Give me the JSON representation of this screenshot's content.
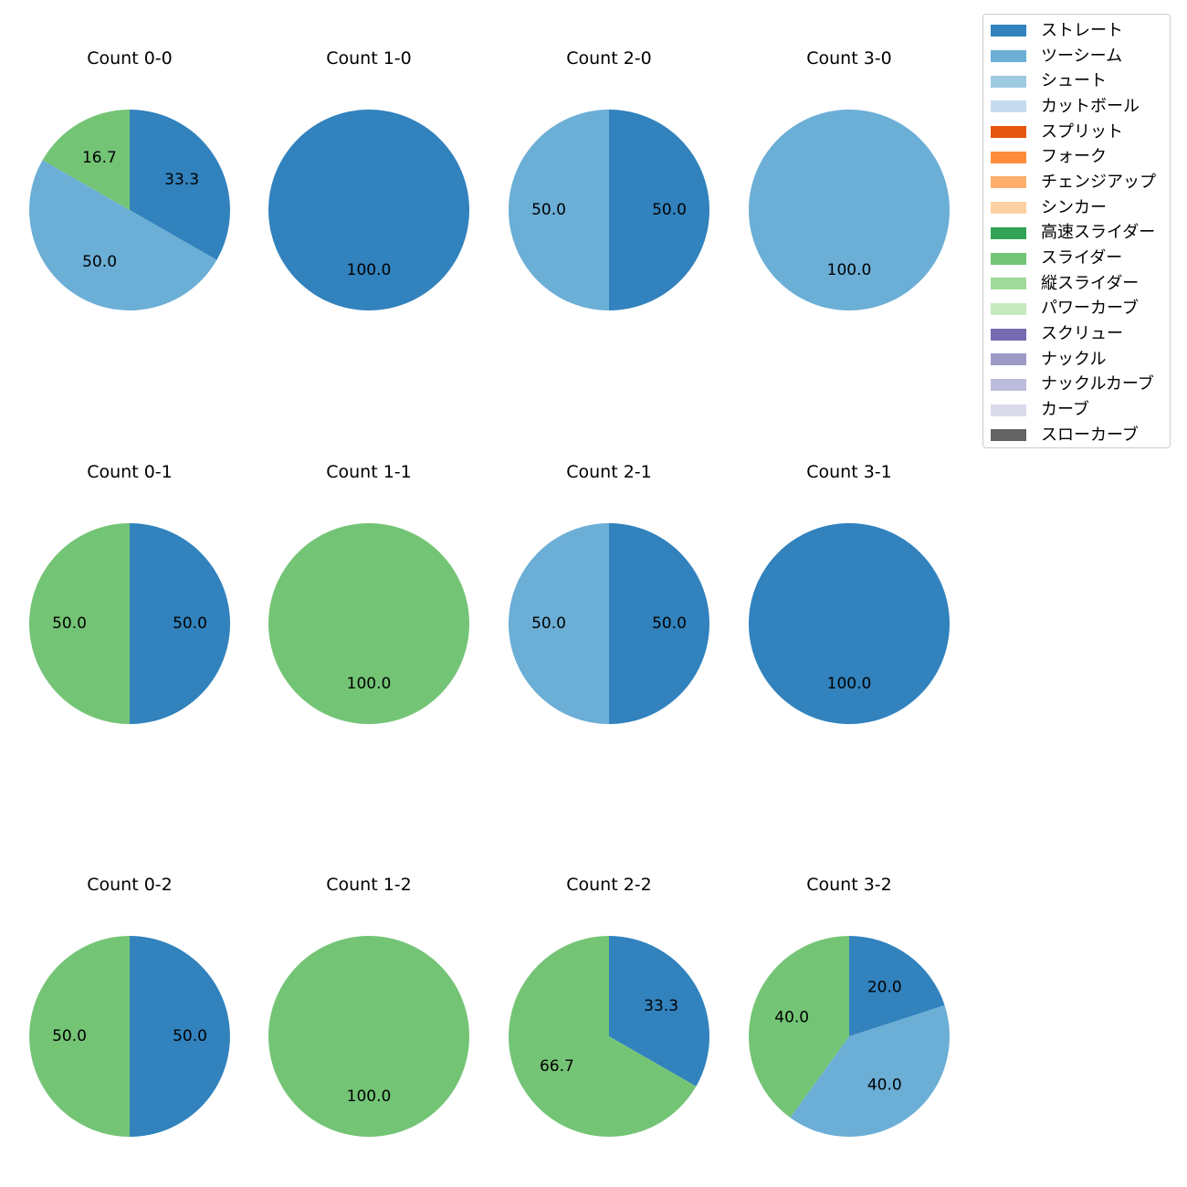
{
  "chart_data": {
    "type": "pie",
    "grid": false,
    "legend_position": "right",
    "legend": [
      {
        "label": "ストレート",
        "color": "#3182bd"
      },
      {
        "label": "ツーシーム",
        "color": "#6baed6"
      },
      {
        "label": "シュート",
        "color": "#9ecae1"
      },
      {
        "label": "カットボール",
        "color": "#c6dbef"
      },
      {
        "label": "スプリット",
        "color": "#e6550d"
      },
      {
        "label": "フォーク",
        "color": "#fd8d3c"
      },
      {
        "label": "チェンジアップ",
        "color": "#fdae6b"
      },
      {
        "label": "シンカー",
        "color": "#fdd0a2"
      },
      {
        "label": "高速スライダー",
        "color": "#31a354"
      },
      {
        "label": "スライダー",
        "color": "#74c476"
      },
      {
        "label": "縦スライダー",
        "color": "#a1d99b"
      },
      {
        "label": "パワーカーブ",
        "color": "#c7e9c0"
      },
      {
        "label": "スクリュー",
        "color": "#756bb1"
      },
      {
        "label": "ナックル",
        "color": "#9e9ac8"
      },
      {
        "label": "ナックルカーブ",
        "color": "#bcbddc"
      },
      {
        "label": "カーブ",
        "color": "#dadaeb"
      },
      {
        "label": "スローカーブ",
        "color": "#636363"
      }
    ],
    "pies": [
      {
        "title": "Count 0-0",
        "slices": [
          {
            "pitch": "ストレート",
            "value": 33.3
          },
          {
            "pitch": "ツーシーム",
            "value": 50.0
          },
          {
            "pitch": "スライダー",
            "value": 16.7
          }
        ]
      },
      {
        "title": "Count 1-0",
        "slices": [
          {
            "pitch": "ストレート",
            "value": 100.0
          }
        ]
      },
      {
        "title": "Count 2-0",
        "slices": [
          {
            "pitch": "ストレート",
            "value": 50.0
          },
          {
            "pitch": "ツーシーム",
            "value": 50.0
          }
        ]
      },
      {
        "title": "Count 3-0",
        "slices": [
          {
            "pitch": "ツーシーム",
            "value": 100.0
          }
        ]
      },
      {
        "title": "Count 0-1",
        "slices": [
          {
            "pitch": "ストレート",
            "value": 50.0
          },
          {
            "pitch": "スライダー",
            "value": 50.0
          }
        ]
      },
      {
        "title": "Count 1-1",
        "slices": [
          {
            "pitch": "スライダー",
            "value": 100.0
          }
        ]
      },
      {
        "title": "Count 2-1",
        "slices": [
          {
            "pitch": "ストレート",
            "value": 50.0
          },
          {
            "pitch": "ツーシーム",
            "value": 50.0
          }
        ]
      },
      {
        "title": "Count 3-1",
        "slices": [
          {
            "pitch": "ストレート",
            "value": 100.0
          }
        ]
      },
      {
        "title": "Count 0-2",
        "slices": [
          {
            "pitch": "ストレート",
            "value": 50.0
          },
          {
            "pitch": "スライダー",
            "value": 50.0
          }
        ]
      },
      {
        "title": "Count 1-2",
        "slices": [
          {
            "pitch": "スライダー",
            "value": 100.0
          }
        ]
      },
      {
        "title": "Count 2-2",
        "slices": [
          {
            "pitch": "ストレート",
            "value": 33.3
          },
          {
            "pitch": "スライダー",
            "value": 66.7
          }
        ]
      },
      {
        "title": "Count 3-2",
        "slices": [
          {
            "pitch": "ストレート",
            "value": 20.0
          },
          {
            "pitch": "ツーシーム",
            "value": 40.0
          },
          {
            "pitch": "スライダー",
            "value": 40.0
          }
        ]
      }
    ]
  }
}
